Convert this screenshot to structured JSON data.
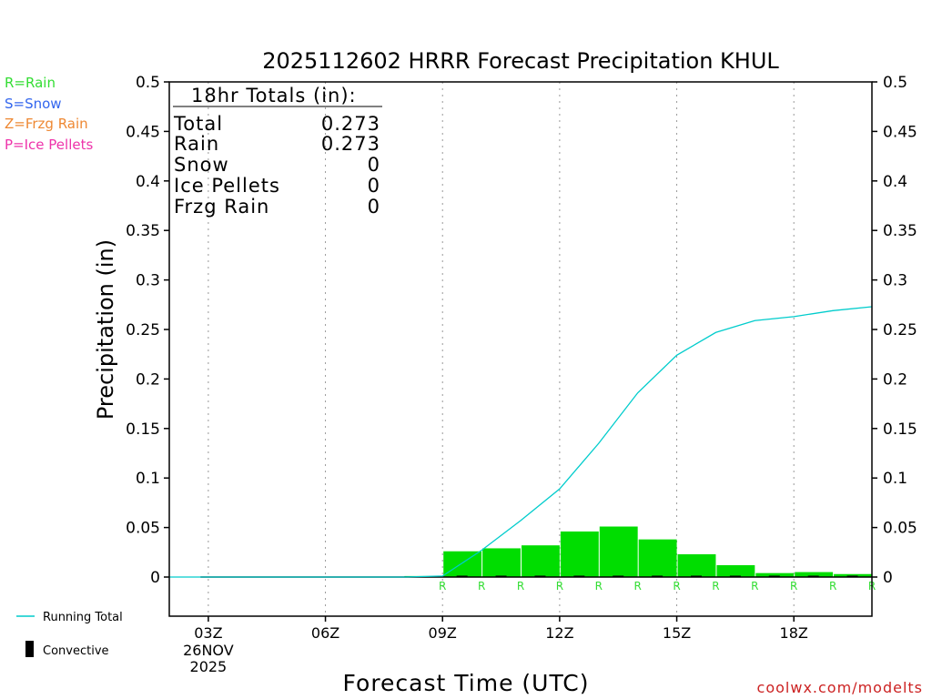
{
  "chart_data": {
    "type": "bar",
    "title": "2025112602 HRRR Forecast Precipitation KHUL",
    "xlabel": "Forecast Time (UTC)",
    "ylabel": "Precipitation (in)",
    "ylim": [
      0,
      0.5
    ],
    "xlim_hours": [
      2,
      20
    ],
    "y_ticks": [
      0,
      0.05,
      0.1,
      0.15,
      0.2,
      0.25,
      0.3,
      0.35,
      0.4,
      0.45,
      0.5
    ],
    "y_tick_labels": [
      "0",
      "0.05",
      "0.1",
      "0.15",
      "0.2",
      "0.25",
      "0.3",
      "0.35",
      "0.4",
      "0.45",
      "0.5"
    ],
    "x_ticks": [
      {
        "hour": 3,
        "label": "03Z"
      },
      {
        "hour": 6,
        "label": "06Z"
      },
      {
        "hour": 9,
        "label": "09Z"
      },
      {
        "hour": 12,
        "label": "12Z"
      },
      {
        "hour": 15,
        "label": "15Z"
      },
      {
        "hour": 18,
        "label": "18Z"
      }
    ],
    "date_label_line1": "26NOV",
    "date_label_line2": "2025",
    "hours": [
      3,
      4,
      5,
      6,
      7,
      8,
      9,
      10,
      11,
      12,
      13,
      14,
      15,
      16,
      17,
      18,
      19,
      20
    ],
    "hourly_precip": [
      0,
      0,
      0,
      0,
      0,
      0,
      0.001,
      0.026,
      0.029,
      0.032,
      0.046,
      0.051,
      0.038,
      0.023,
      0.012,
      0.004,
      0.005,
      0.003
    ],
    "convective": [
      0,
      0,
      0,
      0,
      0,
      0,
      0,
      0.001,
      0.001,
      0.001,
      0.001,
      0.001,
      0.001,
      0.001,
      0.001,
      0.001,
      0.001,
      0.001
    ],
    "running_total_hours": [
      2,
      3,
      4,
      5,
      6,
      7,
      8,
      9,
      10,
      11,
      12,
      13,
      14,
      15,
      16,
      17,
      18,
      19,
      20
    ],
    "running_total": [
      0,
      0,
      0,
      0,
      0,
      0,
      0,
      0.001,
      0.027,
      0.057,
      0.089,
      0.135,
      0.186,
      0.224,
      0.247,
      0.259,
      0.263,
      0.269,
      0.273
    ],
    "ptype_marks": [
      {
        "hour": 9,
        "label": "R"
      },
      {
        "hour": 10,
        "label": "R"
      },
      {
        "hour": 11,
        "label": "R"
      },
      {
        "hour": 12,
        "label": "R"
      },
      {
        "hour": 13,
        "label": "R"
      },
      {
        "hour": 14,
        "label": "R"
      },
      {
        "hour": 15,
        "label": "R"
      },
      {
        "hour": 16,
        "label": "R"
      },
      {
        "hour": 17,
        "label": "R"
      },
      {
        "hour": 18,
        "label": "R"
      },
      {
        "hour": 19,
        "label": "R"
      },
      {
        "hour": 20,
        "label": "R"
      }
    ],
    "totals_box": {
      "heading": "18hr Totals (in):",
      "rows": [
        {
          "label": "Total",
          "value": "0.273"
        },
        {
          "label": "Rain",
          "value": "0.273"
        },
        {
          "label": "Snow",
          "value": "0"
        },
        {
          "label": "Ice Pellets",
          "value": "0"
        },
        {
          "label": "Frzg Rain",
          "value": "0"
        }
      ]
    },
    "ptype_legend": [
      {
        "text": "R=Rain",
        "color": "#33dd33"
      },
      {
        "text": "S=Snow",
        "color": "#3366ee"
      },
      {
        "text": "Z=Frzg Rain",
        "color": "#ee8833"
      },
      {
        "text": "P=Ice Pellets",
        "color": "#ee33aa"
      }
    ],
    "series_legend": [
      {
        "name": "Running Total",
        "color": "#00cccc"
      },
      {
        "name": "Convective",
        "color": "#000000"
      }
    ],
    "bar_color": "#00dd00",
    "credit": "coolwx.com/modelts",
    "credit_color": "#cc2222"
  }
}
